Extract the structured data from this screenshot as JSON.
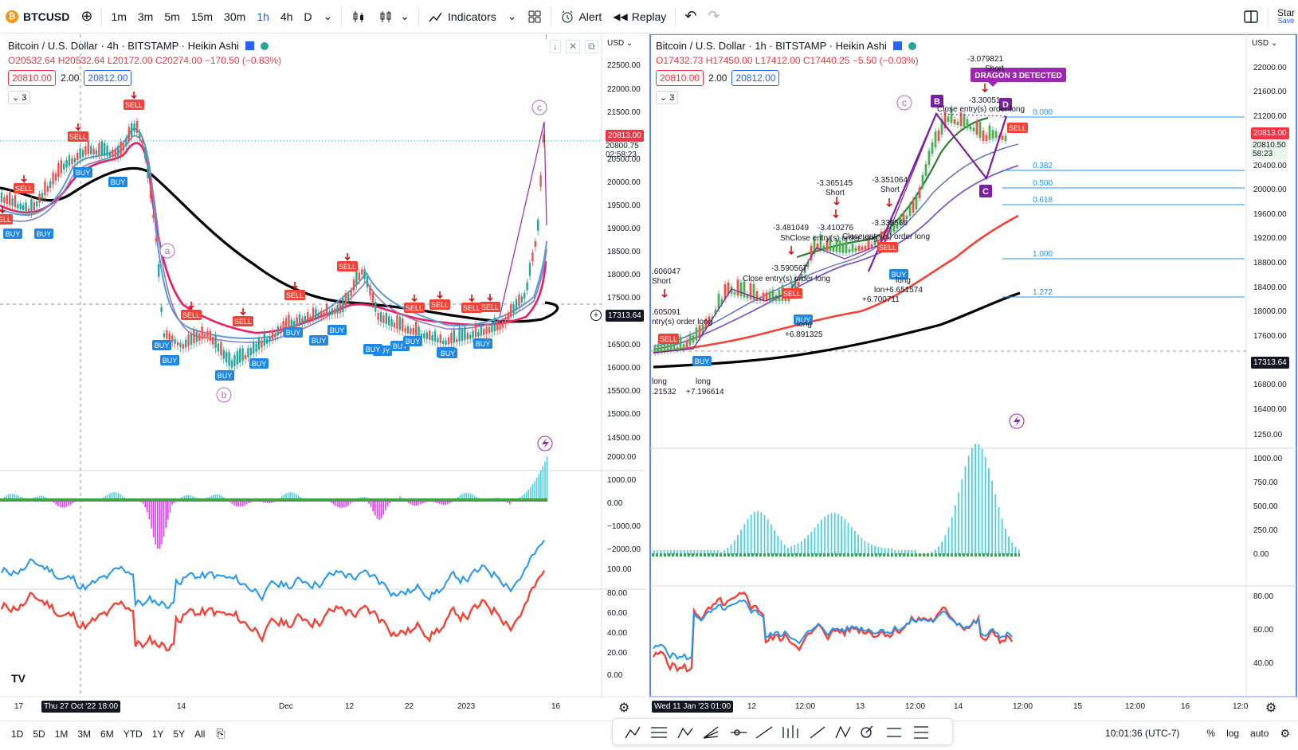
{
  "toolbar": {
    "symbol": "BTCUSD",
    "symbol_icon": "bitcoin-icon",
    "intervals": [
      "1m",
      "3m",
      "5m",
      "15m",
      "30m",
      "1h",
      "4h",
      "D"
    ],
    "active_interval": "1h",
    "indicators_label": "Indicators",
    "alert_label": "Alert",
    "replay_label": "Replay",
    "star_label": "Star",
    "save_label": "Save"
  },
  "left_chart": {
    "title": "Bitcoin / U.S. Dollar · 4h · BITSTAMP · Heikin Ashi",
    "ohlc": "O20532.64 H20532.64 L20172.00 C20274.00 −170.50 (−0.83%)",
    "bid": "20810.00",
    "spread": "2.00",
    "ask": "20812.00",
    "collapse_count": "3",
    "currency": "USD",
    "price_labels": [
      "22500.00",
      "22000.00",
      "21500.00",
      "20500.00",
      "20000.00",
      "19500.00",
      "19000.00",
      "18500.00",
      "18000.00",
      "17500.00",
      "16500.00",
      "16000.00",
      "15500.00",
      "15000.00",
      "14500.00"
    ],
    "last_price": "20813.00",
    "close_price": "20800.75",
    "countdown": "02:58:23",
    "crosshair_price": "17313.64",
    "osc_labels": [
      "2000.00",
      "1000.00",
      "0.00",
      "−1000.00",
      "−2000.00"
    ],
    "rsi_labels": [
      "100.00",
      "80.00",
      "60.00",
      "40.00",
      "20.00",
      "0.00"
    ],
    "time_labels": [
      "17",
      "14",
      "Dec",
      "12",
      "22",
      "2023",
      "16"
    ],
    "crosshair_time": "Thu 27 Oct '22   18:00",
    "wave_labels": [
      "a",
      "b",
      "c"
    ],
    "sell_label": "SELL",
    "buy_label": "BUY"
  },
  "right_chart": {
    "title": "Bitcoin / U.S. Dollar · 1h · BITSTAMP · Heikin Ashi",
    "ohlc": "O17432.73 H17450.00 L17412.00 C17440.25 −5.50 (−0.03%)",
    "bid": "20810.00",
    "spread": "2.00",
    "ask": "20812.00",
    "collapse_count": "3",
    "currency": "USD",
    "price_labels": [
      "22000.00",
      "21600.00",
      "21200.00",
      "20400.00",
      "20000.00",
      "19600.00",
      "19200.00",
      "18800.00",
      "18400.00",
      "18000.00",
      "17600.00",
      "16800.00",
      "16400.00"
    ],
    "last_price": "20813.00",
    "close_price": "20810.50",
    "countdown": "58:23",
    "crosshair_price": "17313.64",
    "osc_labels": [
      "1250.00",
      "1000.00",
      "750.00",
      "500.00",
      "250.00",
      "0.00"
    ],
    "rsi_labels": [
      "80.00",
      "60.00",
      "40.00"
    ],
    "time_labels": [
      "12",
      "12:00",
      "13",
      "12:00",
      "14",
      "12:00",
      "15",
      "12:00",
      "16",
      "12:0"
    ],
    "crosshair_time": "Wed 11 Jan '23   01:00",
    "fib_levels": [
      "0.000",
      "0.382",
      "0.500",
      "0.618",
      "1.000",
      "1.272"
    ],
    "dragon_label": "DRAGON 3 DETECTED",
    "annotations": {
      "a1": "-3.079821",
      "a1s": "Short",
      "a2": "-3.30051",
      "a3": "Close entry(s) order long",
      "a4": "-3.365145",
      "a4s": "Short",
      "a5": "-3.351064",
      "a5s": "Short",
      "a6": "-3.481049",
      "a7": "-3.410276",
      "a8": "ShClose entry(s) order long",
      "a9": "Close entry(s) order long",
      "a10": "-3.335566",
      "a11": "-3.590567",
      "a12": "Close entry(s) order long",
      "a13": ".606047",
      "a13s": "Short",
      "a14": ".605091",
      "a15": "ntry(s) order long",
      "a16": "long",
      "a17": ".21532",
      "a18": "long",
      "a19": "+7.196614",
      "a20": "long",
      "a21": "+6.891325",
      "a22": "long",
      "a23": "lon+6.651574",
      "a24": "+6.700711"
    },
    "pattern_labels": [
      "B",
      "C",
      "D",
      "c"
    ],
    "sell_label": "SELL",
    "buy_label": "BUY"
  },
  "bottom": {
    "ranges": [
      "1D",
      "5D",
      "1M",
      "3M",
      "6M",
      "YTD",
      "1Y",
      "5Y",
      "All"
    ],
    "time": "10:01:36 (UTC-7)",
    "percent": "%",
    "log": "log",
    "auto": "auto"
  },
  "colors": {
    "up": "#26a69a",
    "down": "#ef5350",
    "accent": "#2962ff",
    "purple": "#9c27b0",
    "ema_red": "#e91e63",
    "ema_black": "#000000"
  }
}
